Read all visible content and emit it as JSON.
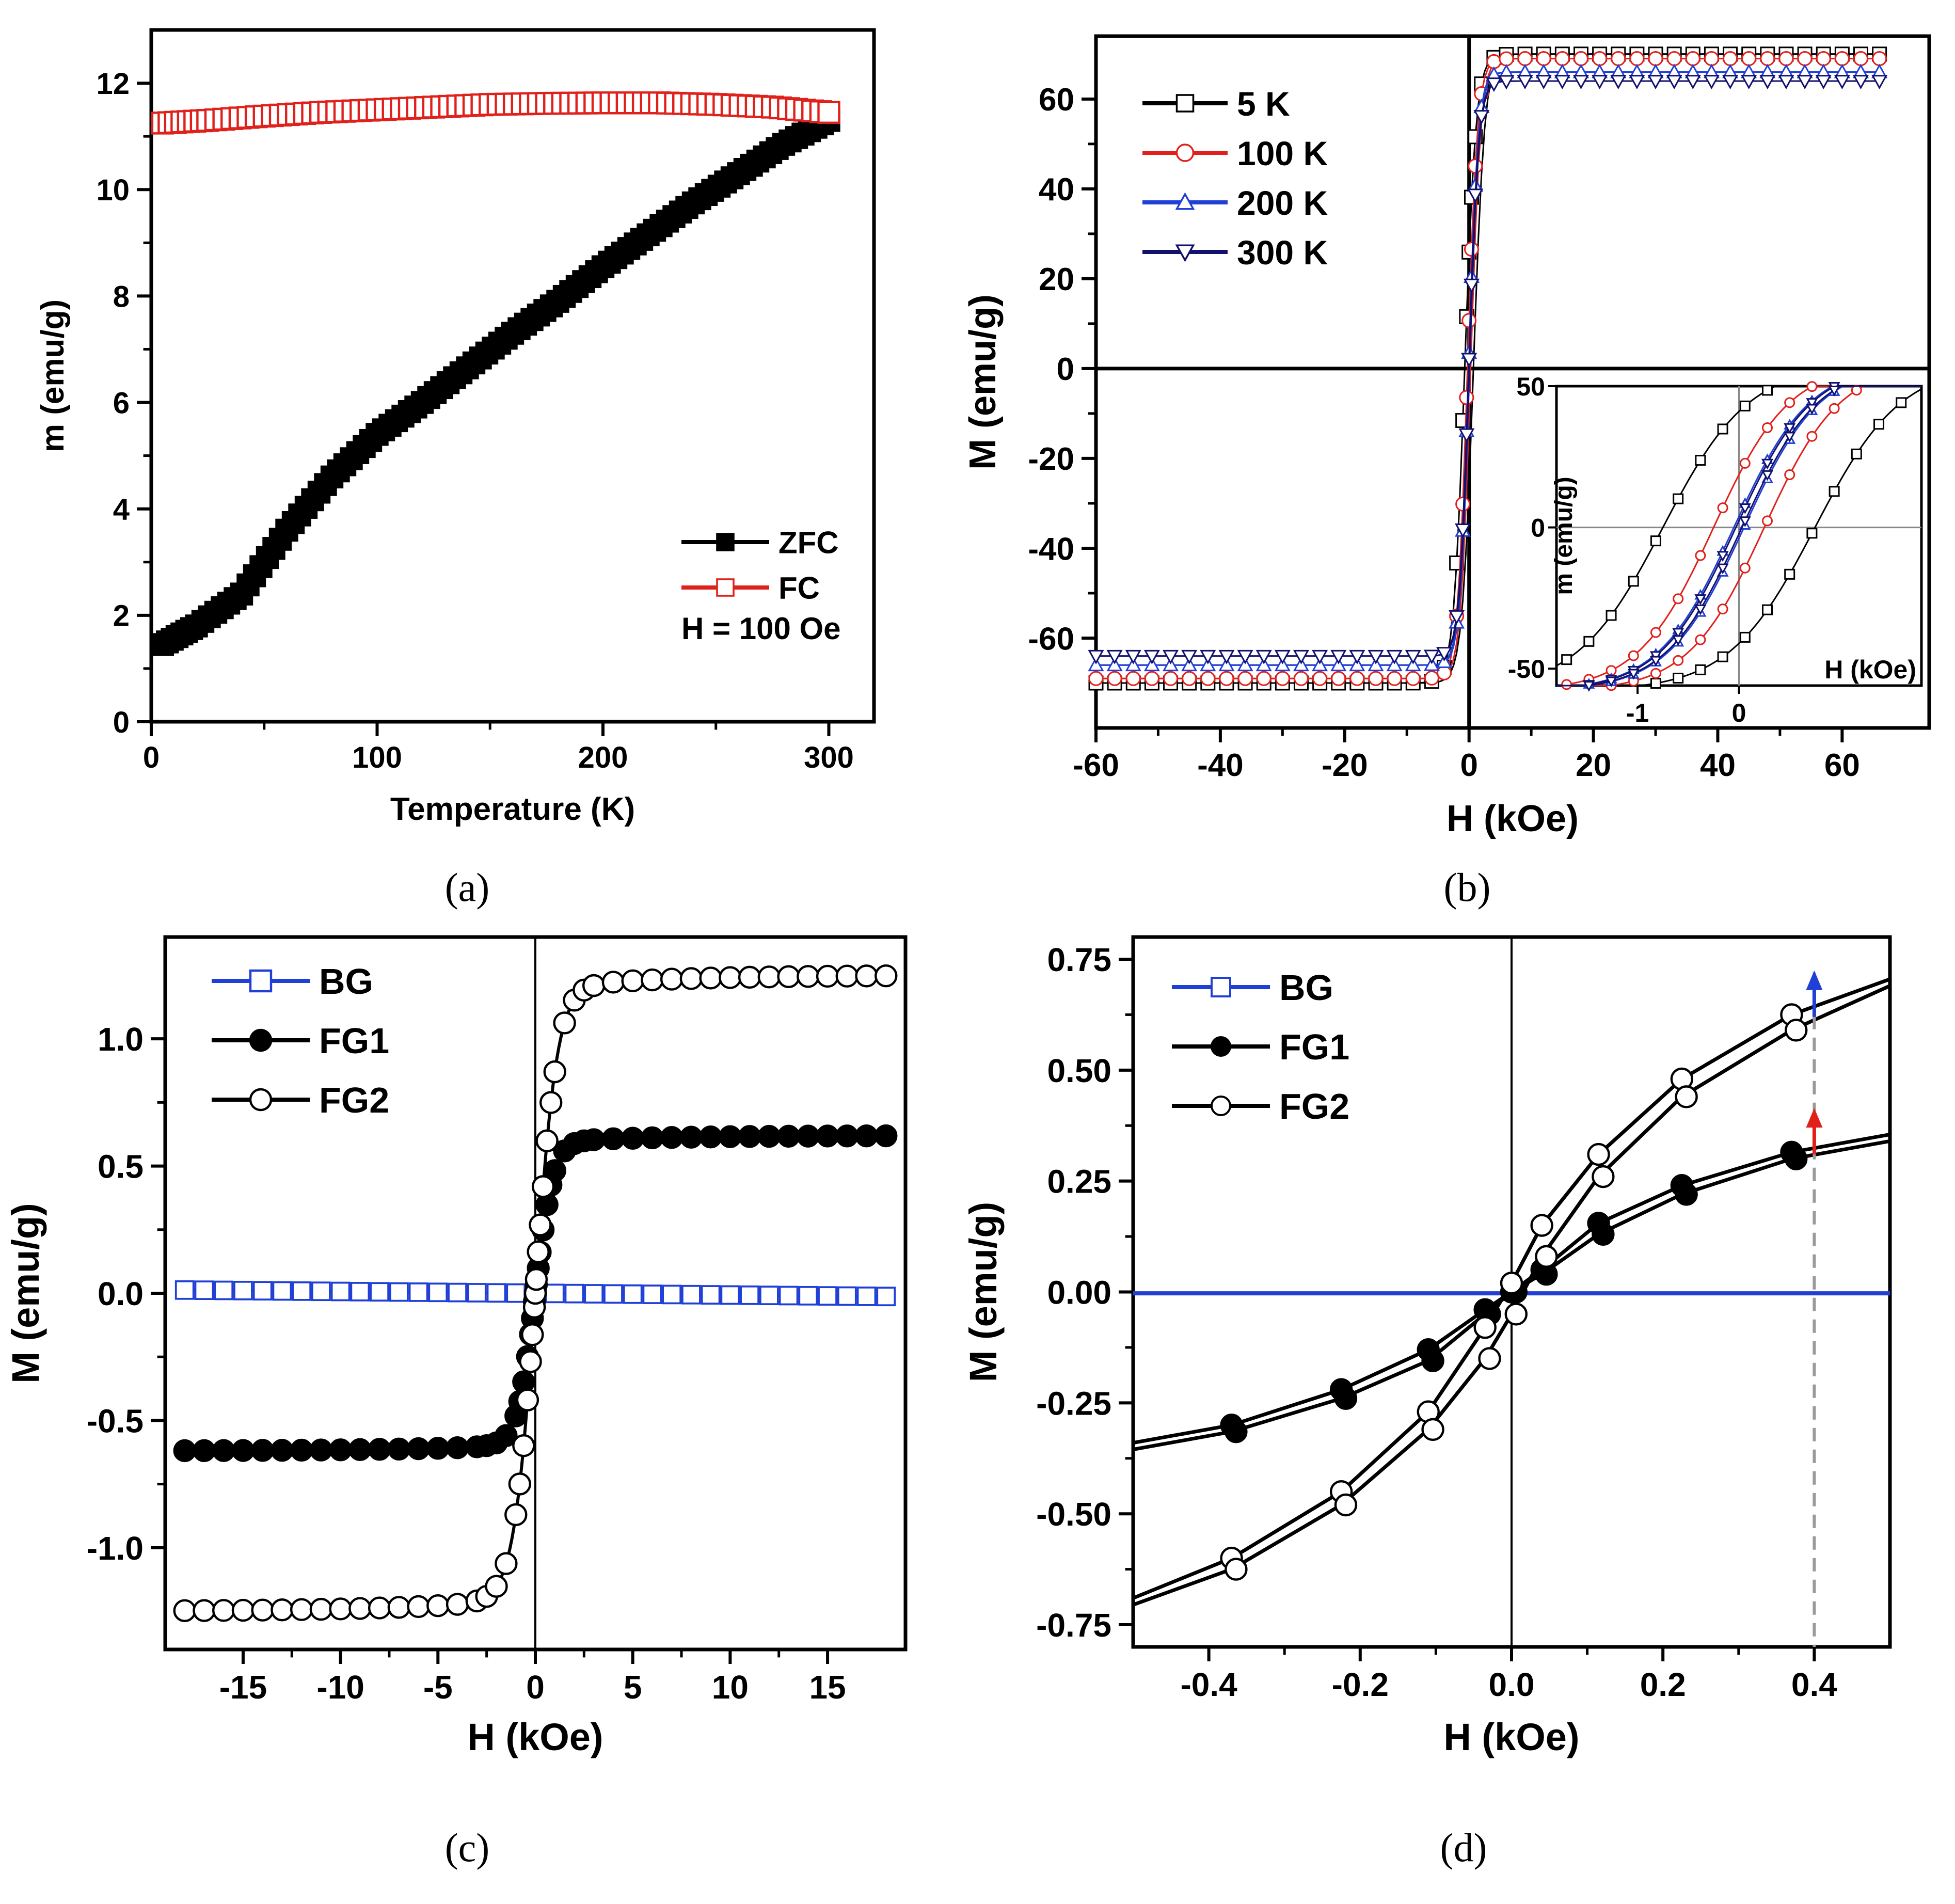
{
  "chart_data": [
    {
      "panel_id": "a",
      "type": "scatter",
      "panel_label": "(a)",
      "title": "",
      "xlabel": "Temperature (K)",
      "ylabel": "m (emu/g)",
      "xlim": [
        0,
        320
      ],
      "ylim": [
        0,
        13
      ],
      "xticks": [
        0,
        100,
        200,
        300
      ],
      "xtick_labels": [
        "0",
        "100",
        "200",
        "300"
      ],
      "yticks": [
        0,
        2,
        4,
        6,
        8,
        10,
        12
      ],
      "ytick_labels": [
        "0",
        "2",
        "4",
        "6",
        "8",
        "10",
        "12"
      ],
      "legend_position": "bottom-right",
      "annotations": [
        {
          "text": "H = 100 Oe",
          "x": 235,
          "y": 1.7
        }
      ],
      "series": [
        {
          "name": "ZFC",
          "color": "#000000",
          "marker": "square-filled",
          "x": [
            5,
            20,
            40,
            60,
            80,
            100,
            120,
            140,
            160,
            180,
            200,
            220,
            240,
            260,
            280,
            300
          ],
          "y": [
            1.45,
            1.8,
            2.4,
            3.6,
            4.6,
            5.4,
            6.0,
            6.65,
            7.3,
            7.9,
            8.55,
            9.15,
            9.75,
            10.3,
            10.85,
            11.3
          ]
        },
        {
          "name": "FC",
          "color": "#e0201b",
          "marker": "square-open",
          "x": [
            5,
            25,
            50,
            75,
            100,
            125,
            150,
            175,
            200,
            225,
            250,
            275,
            300
          ],
          "y": [
            11.25,
            11.3,
            11.38,
            11.45,
            11.5,
            11.55,
            11.6,
            11.62,
            11.63,
            11.63,
            11.6,
            11.55,
            11.45
          ]
        }
      ]
    },
    {
      "panel_id": "b",
      "type": "line",
      "panel_label": "(b)",
      "title": "",
      "xlabel": "H (kOe)",
      "ylabel": "M (emu/g)",
      "xlim": [
        -60,
        74
      ],
      "ylim": [
        -80,
        74
      ],
      "xticks": [
        -60,
        -40,
        -20,
        0,
        20,
        40,
        60
      ],
      "xtick_labels": [
        "-60",
        "-40",
        "-20",
        "0",
        "20",
        "40",
        "60"
      ],
      "yticks": [
        -60,
        -40,
        -20,
        0,
        20,
        40,
        60
      ],
      "ytick_labels": [
        "-60",
        "-40",
        "-20",
        "0",
        "20",
        "40",
        "60"
      ],
      "legend_position": "top-left",
      "series": [
        {
          "name": "5 K",
          "color": "#000000",
          "marker": "square-open",
          "Ms": 70,
          "Hc": 0.7,
          "a": 1.8
        },
        {
          "name": "100 K",
          "color": "#e0201b",
          "marker": "circle-open",
          "Ms": 69,
          "Hc": 0.25,
          "a": 1.6
        },
        {
          "name": "200 K",
          "color": "#1f3fd6",
          "marker": "triangle-up-open",
          "Ms": 66,
          "Hc": 0.08,
          "a": 1.5
        },
        {
          "name": "300 K",
          "color": "#12126e",
          "marker": "triangle-down-open",
          "Ms": 64,
          "Hc": 0.05,
          "a": 1.5
        }
      ],
      "inset": {
        "xlabel": "H (kOe)",
        "ylabel": "m (emu/g)",
        "xlim": [
          -1.8,
          1.8
        ],
        "ylim": [
          -56,
          50
        ],
        "xticks": [
          -1,
          0
        ],
        "xtick_labels": [
          "-1",
          "0"
        ],
        "yticks": [
          -50,
          0,
          50
        ],
        "ytick_labels": [
          "-50",
          "0",
          "50"
        ]
      }
    },
    {
      "panel_id": "c",
      "type": "line",
      "panel_label": "(c)",
      "title": "",
      "xlabel": "H (kOe)",
      "ylabel": "M (emu/g)",
      "xlim": [
        -19,
        19
      ],
      "ylim": [
        -1.4,
        1.4
      ],
      "xticks": [
        -15,
        -10,
        -5,
        0,
        5,
        10,
        15
      ],
      "xtick_labels": [
        "-15",
        "-10",
        "-5",
        "0",
        "5",
        "10",
        "15"
      ],
      "yticks": [
        -1.0,
        -0.5,
        0.0,
        0.5,
        1.0
      ],
      "ytick_labels": [
        "-1.0",
        "-0.5",
        "0.0",
        "0.5",
        "1.0"
      ],
      "legend_position": "top-left",
      "series": [
        {
          "name": "BG",
          "color": "#1f3fd6",
          "marker": "square-open",
          "Ms": 0.01,
          "a": 1.0
        },
        {
          "name": "FG1",
          "color": "#000000",
          "marker": "circle-filled",
          "Ms": 0.62,
          "a": 0.9
        },
        {
          "name": "FG2",
          "color": "#000000",
          "marker": "circle-open",
          "Ms": 1.25,
          "a": 1.1
        }
      ]
    },
    {
      "panel_id": "d",
      "type": "line",
      "panel_label": "(d)",
      "title": "",
      "xlabel": "H (kOe)",
      "ylabel": "M (emu/g)",
      "xlim": [
        -0.5,
        0.5
      ],
      "ylim": [
        -0.8,
        0.8
      ],
      "xticks": [
        -0.4,
        -0.2,
        0.0,
        0.2,
        0.4
      ],
      "xtick_labels": [
        "-0.4",
        "-0.2",
        "0.0",
        "0.2",
        "0.4"
      ],
      "yticks": [
        -0.75,
        -0.5,
        -0.25,
        0.0,
        0.25,
        0.5,
        0.75
      ],
      "ytick_labels": [
        "-0.75",
        "-0.50",
        "-0.25",
        "0.00",
        "0.25",
        "0.50",
        "0.75"
      ],
      "legend_position": "top-left",
      "marker_x": [
        -0.37,
        -0.225,
        -0.11,
        -0.035,
        0.0,
        0.04,
        0.115,
        0.225,
        0.37
      ],
      "series": [
        {
          "name": "BG",
          "color": "#1f3fd6",
          "marker": "square-open",
          "x": [
            -0.5,
            0.5
          ],
          "y": [
            -0.003,
            -0.003
          ]
        },
        {
          "name": "FG1",
          "color": "#000000",
          "marker": "circle-filled",
          "upper_x": [
            -0.5,
            -0.37,
            -0.225,
            -0.11,
            -0.035,
            0.0,
            0.04,
            0.115,
            0.225,
            0.37,
            0.5
          ],
          "upper_y": [
            -0.34,
            -0.3,
            -0.22,
            -0.13,
            -0.04,
            0.0,
            0.05,
            0.155,
            0.24,
            0.315,
            0.355
          ],
          "lower_x": [
            -0.5,
            -0.37,
            -0.225,
            -0.11,
            -0.035,
            0.0,
            0.04,
            0.115,
            0.225,
            0.37,
            0.5
          ],
          "lower_y": [
            -0.355,
            -0.315,
            -0.24,
            -0.155,
            -0.05,
            0.0,
            0.04,
            0.13,
            0.22,
            0.3,
            0.34
          ]
        },
        {
          "name": "FG2",
          "color": "#000000",
          "marker": "circle-open",
          "upper_x": [
            -0.5,
            -0.37,
            -0.225,
            -0.11,
            -0.035,
            0.0,
            0.04,
            0.115,
            0.225,
            0.37,
            0.5
          ],
          "upper_y": [
            -0.69,
            -0.6,
            -0.45,
            -0.27,
            -0.08,
            0.02,
            0.15,
            0.31,
            0.48,
            0.625,
            0.705
          ],
          "lower_x": [
            -0.5,
            -0.37,
            -0.225,
            -0.11,
            -0.035,
            0.0,
            0.04,
            0.115,
            0.225,
            0.37,
            0.5
          ],
          "lower_y": [
            -0.705,
            -0.625,
            -0.48,
            -0.31,
            -0.15,
            -0.05,
            0.08,
            0.26,
            0.44,
            0.59,
            0.69
          ]
        }
      ],
      "annotations": [
        {
          "type": "dashed-vertical-line",
          "x": 0.4,
          "color": "#9a9a9a"
        },
        {
          "type": "arrow-up",
          "x": 0.4,
          "from_y": 0.62,
          "to_y": 0.72,
          "color": "#1f3fd6"
        },
        {
          "type": "arrow-up",
          "x": 0.4,
          "from_y": 0.31,
          "to_y": 0.41,
          "color": "#e0201b"
        }
      ]
    }
  ]
}
